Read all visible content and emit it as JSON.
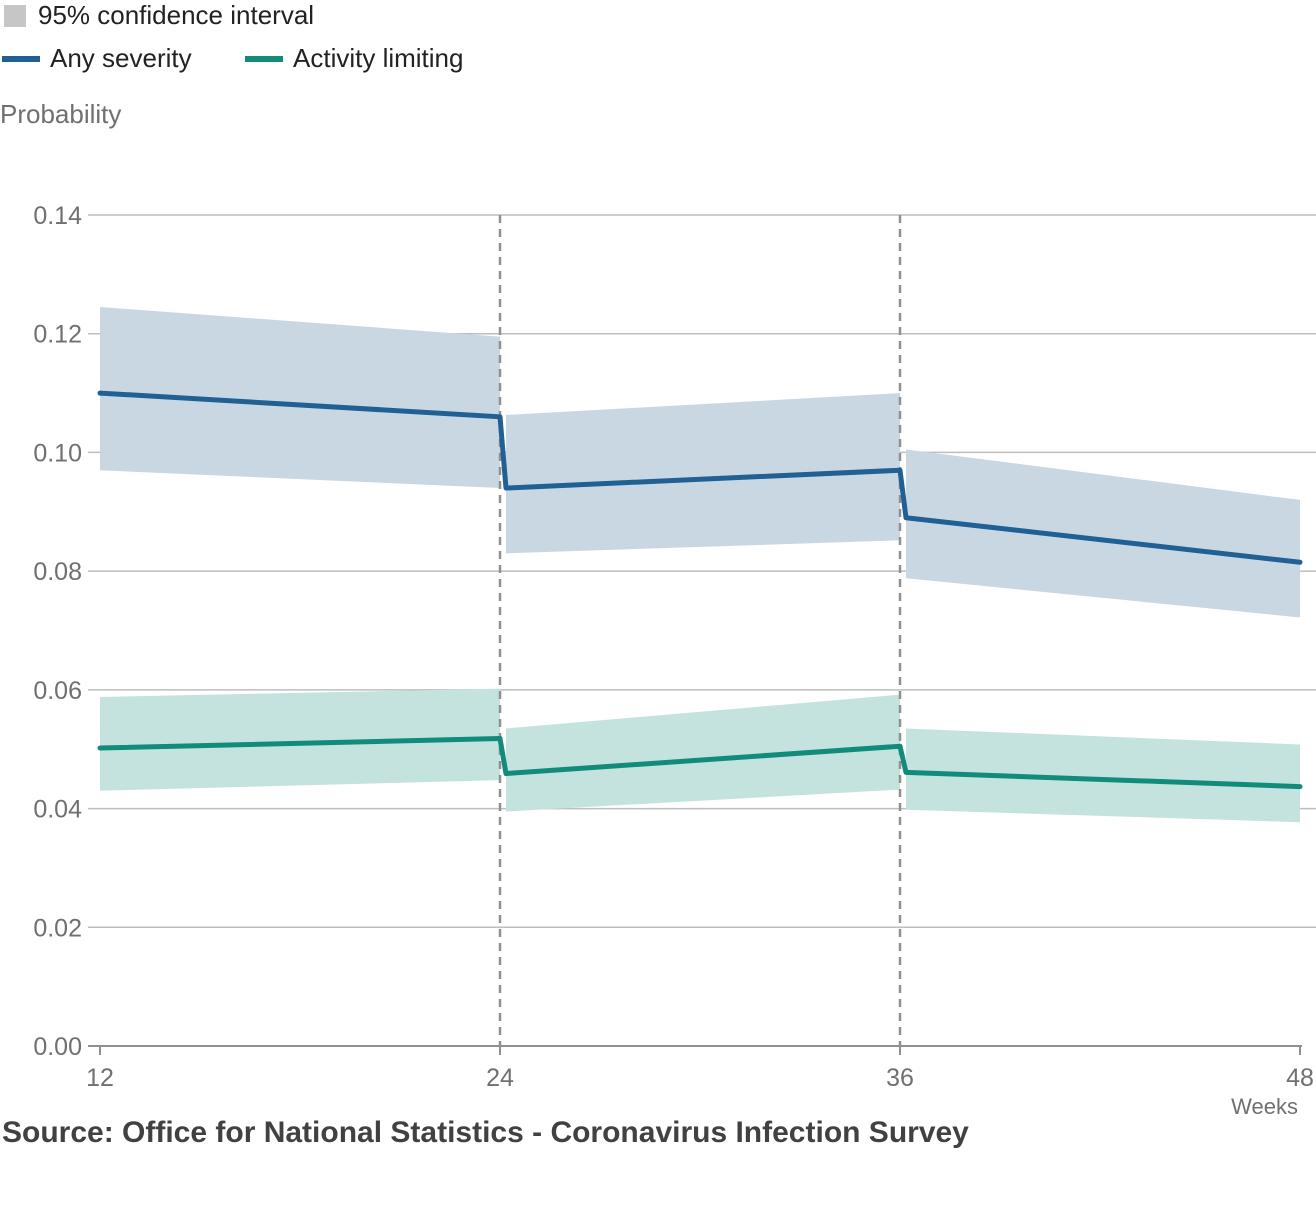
{
  "legend": {
    "ci_label": "95% confidence interval",
    "any_label": "Any severity",
    "activity_label": "Activity limiting"
  },
  "source": "Source: Office for National Statistics - Coronavirus Infection Survey",
  "colors": {
    "any_line": "#206095",
    "any_band": "#c9d7e3",
    "activity_line": "#118c7b",
    "activity_band": "#c5e3de",
    "ci_swatch": "#c6c6c6",
    "grid": "#bebebe",
    "divider": "#909090"
  },
  "chart_data": {
    "type": "line",
    "ylabel": "Probability",
    "xlabel": "Weeks",
    "x_ticks": [
      "12",
      "24",
      "36",
      "48"
    ],
    "y_ticks": [
      "0.00",
      "0.02",
      "0.04",
      "0.06",
      "0.08",
      "0.10",
      "0.12",
      "0.14"
    ],
    "xlim": [
      12,
      48
    ],
    "ylim": [
      0,
      0.14
    ],
    "grid": true,
    "legend_position": "top-left",
    "dividers_x": [
      24,
      36
    ],
    "series": [
      {
        "name": "Any severity",
        "segments": [
          {
            "x": [
              12,
              24
            ],
            "y": [
              0.11,
              0.106
            ],
            "lower": [
              0.097,
              0.094
            ],
            "upper": [
              0.1245,
              0.1195
            ]
          },
          {
            "x": [
              24,
              36
            ],
            "y": [
              0.094,
              0.097
            ],
            "lower": [
              0.083,
              0.0852
            ],
            "upper": [
              0.1063,
              0.11
            ]
          },
          {
            "x": [
              36,
              48
            ],
            "y": [
              0.089,
              0.0815
            ],
            "lower": [
              0.0788,
              0.0722
            ],
            "upper": [
              0.1005,
              0.092
            ]
          }
        ]
      },
      {
        "name": "Activity limiting",
        "segments": [
          {
            "x": [
              12,
              24
            ],
            "y": [
              0.0502,
              0.0518
            ],
            "lower": [
              0.043,
              0.0448
            ],
            "upper": [
              0.0588,
              0.0602
            ]
          },
          {
            "x": [
              24,
              36
            ],
            "y": [
              0.0459,
              0.0505
            ],
            "lower": [
              0.0395,
              0.0432
            ],
            "upper": [
              0.0535,
              0.0592
            ]
          },
          {
            "x": [
              36,
              48
            ],
            "y": [
              0.0461,
              0.0437
            ],
            "lower": [
              0.0398,
              0.0377
            ],
            "upper": [
              0.0535,
              0.0508
            ]
          }
        ]
      }
    ]
  }
}
